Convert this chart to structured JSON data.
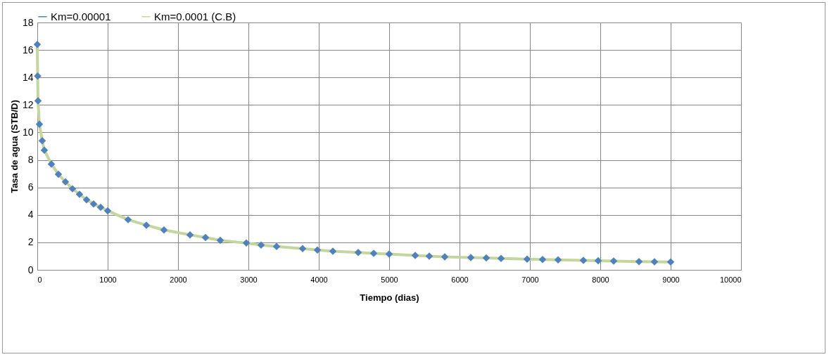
{
  "chart_data": {
    "type": "scatter",
    "xlabel": "Tiempo (dias)",
    "ylabel": "Tasa de agua  (STB/D)",
    "x": [
      0,
      5,
      10,
      30,
      70,
      100,
      200,
      300,
      400,
      500,
      600,
      700,
      800,
      900,
      1000,
      1290,
      1550,
      1800,
      2170,
      2390,
      2600,
      2970,
      3180,
      3400,
      3770,
      3980,
      4200,
      4560,
      4780,
      5000,
      5370,
      5570,
      5790,
      6160,
      6380,
      6590,
      6960,
      7180,
      7400,
      7760,
      7970,
      8190,
      8550,
      8770,
      9000
    ],
    "series": [
      {
        "name": "Km=0.00001",
        "marker": "diamond",
        "color": "#4f81bd",
        "values": [
          16.4,
          14.1,
          12.3,
          10.6,
          9.4,
          8.7,
          7.7,
          6.95,
          6.4,
          5.9,
          5.5,
          5.1,
          4.8,
          4.55,
          4.3,
          3.65,
          3.25,
          2.9,
          2.55,
          2.35,
          2.15,
          1.95,
          1.8,
          1.7,
          1.55,
          1.45,
          1.35,
          1.27,
          1.2,
          1.15,
          1.05,
          1.0,
          0.95,
          0.9,
          0.87,
          0.83,
          0.78,
          0.76,
          0.73,
          0.69,
          0.67,
          0.64,
          0.6,
          0.59,
          0.57
        ]
      },
      {
        "name": "Km=0.0001 (C.B)",
        "type": "line",
        "color": "#c3d69b",
        "values": [
          16.4,
          14.1,
          12.3,
          10.6,
          9.4,
          8.7,
          7.7,
          6.95,
          6.4,
          5.9,
          5.5,
          5.1,
          4.8,
          4.55,
          4.3,
          3.65,
          3.25,
          2.9,
          2.55,
          2.35,
          2.15,
          1.95,
          1.8,
          1.7,
          1.55,
          1.45,
          1.35,
          1.27,
          1.2,
          1.15,
          1.05,
          1.0,
          0.95,
          0.9,
          0.87,
          0.83,
          0.78,
          0.76,
          0.73,
          0.69,
          0.67,
          0.64,
          0.6,
          0.59,
          0.57
        ]
      }
    ],
    "xlim": [
      0,
      10000
    ],
    "xticks": [
      0,
      1000,
      2000,
      3000,
      4000,
      5000,
      6000,
      7000,
      8000,
      9000,
      10000
    ],
    "ylim": [
      0,
      18
    ],
    "yticks": [
      0,
      2,
      4,
      6,
      8,
      10,
      12,
      14,
      16,
      18
    ],
    "grid": true,
    "legend": "top"
  }
}
